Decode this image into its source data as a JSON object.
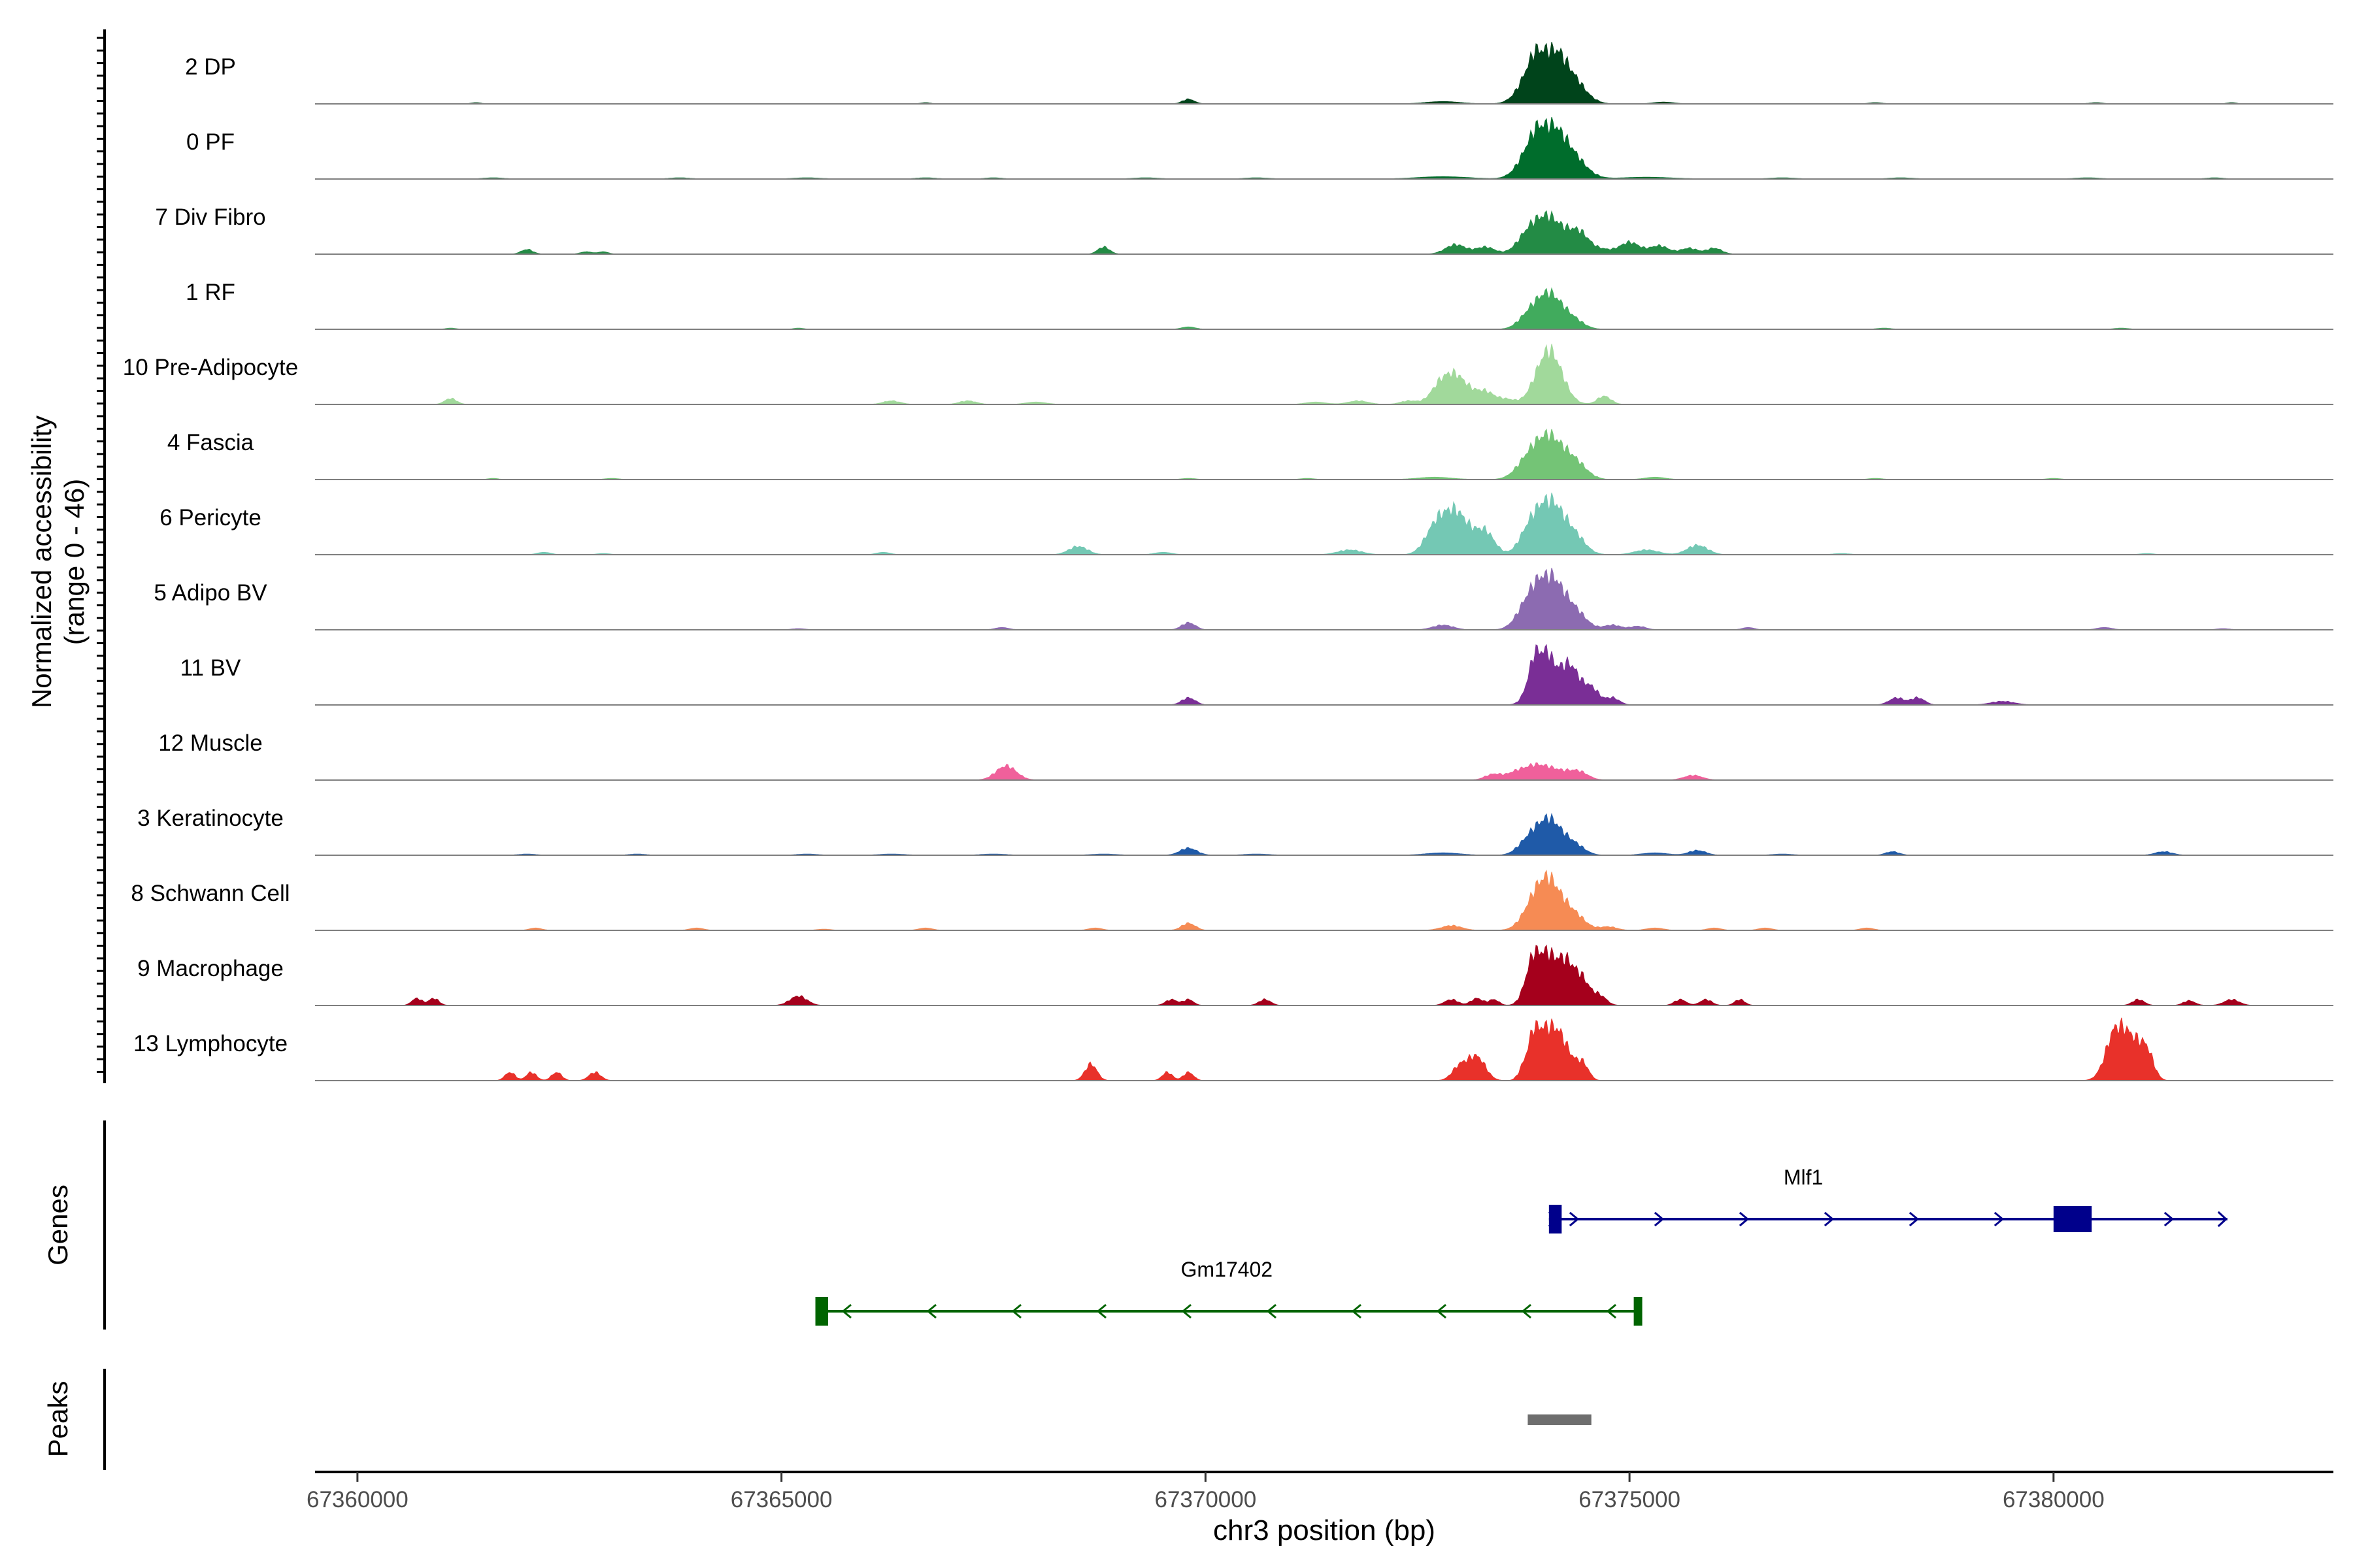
{
  "chart_data": {
    "type": "area",
    "xlabel": "chr3 position (bp)",
    "ylabel_line1": "Normalized accessibility",
    "ylabel_line2": "(range 0 - 46)",
    "xlim": [
      67359500,
      67383300
    ],
    "ylim": [
      0,
      46
    ],
    "x_ticks": [
      {
        "value": 67360000,
        "label": "67360000"
      },
      {
        "value": 67365000,
        "label": "67365000"
      },
      {
        "value": 67370000,
        "label": "67370000"
      },
      {
        "value": 67375000,
        "label": "67375000"
      },
      {
        "value": 67380000,
        "label": "67380000"
      }
    ],
    "tracks": [
      {
        "label": "2 DP",
        "color": "#00441b",
        "peaks": [
          [
            67374050,
            46,
            180
          ],
          [
            67373850,
            16,
            150
          ],
          [
            67374350,
            14,
            150
          ],
          [
            67369800,
            4,
            70
          ],
          [
            67372800,
            2,
            200
          ],
          [
            67375400,
            1.5,
            120
          ],
          [
            67361400,
            1,
            60
          ],
          [
            67366700,
            1,
            60
          ],
          [
            67377900,
            1,
            80
          ],
          [
            67380500,
            1,
            80
          ],
          [
            67382100,
            1,
            60
          ]
        ]
      },
      {
        "label": "0 PF",
        "color": "#006d2c",
        "peaks": [
          [
            67374050,
            42,
            190
          ],
          [
            67373850,
            14,
            150
          ],
          [
            67374350,
            12,
            160
          ],
          [
            67372800,
            2,
            300
          ],
          [
            67375200,
            1.5,
            300
          ],
          [
            67361600,
            1,
            120
          ],
          [
            67363800,
            1,
            120
          ],
          [
            67365300,
            1,
            160
          ],
          [
            67366700,
            1,
            120
          ],
          [
            67367500,
            1,
            100
          ],
          [
            67369300,
            1,
            150
          ],
          [
            67370600,
            1,
            140
          ],
          [
            67376800,
            1,
            150
          ],
          [
            67378200,
            1,
            140
          ],
          [
            67380400,
            1,
            150
          ],
          [
            67381900,
            1,
            100
          ]
        ]
      },
      {
        "label": "7 Div Fibro",
        "color": "#238b45",
        "peaks": [
          [
            67374050,
            30,
            160
          ],
          [
            67374400,
            18,
            130
          ],
          [
            67373800,
            14,
            130
          ],
          [
            67372950,
            8,
            120
          ],
          [
            67373300,
            6,
            110
          ],
          [
            67375000,
            10,
            120
          ],
          [
            67375350,
            7,
            110
          ],
          [
            67375700,
            5,
            100
          ],
          [
            67376000,
            5,
            90
          ],
          [
            67368800,
            6,
            70
          ],
          [
            67362000,
            4,
            70
          ],
          [
            67362700,
            2,
            70
          ],
          [
            67362900,
            2,
            60
          ],
          [
            67374700,
            3,
            100
          ]
        ]
      },
      {
        "label": "1 RF",
        "color": "#41ab5d",
        "peaks": [
          [
            67374050,
            30,
            160
          ],
          [
            67373800,
            8,
            120
          ],
          [
            67374350,
            6,
            120
          ],
          [
            67369800,
            2,
            80
          ],
          [
            67361100,
            1,
            60
          ],
          [
            67365200,
            1,
            60
          ],
          [
            67378000,
            1,
            80
          ],
          [
            67380800,
            1,
            80
          ]
        ]
      },
      {
        "label": "10 Pre-Adipocyte",
        "color": "#a1d99b",
        "peaks": [
          [
            67374050,
            46,
            150
          ],
          [
            67372950,
            24,
            150
          ],
          [
            67372750,
            10,
            110
          ],
          [
            67373300,
            10,
            110
          ],
          [
            67373550,
            4,
            100
          ],
          [
            67374700,
            7,
            80
          ],
          [
            67371800,
            3,
            120
          ],
          [
            67371300,
            2,
            120
          ],
          [
            67372400,
            3,
            100
          ],
          [
            67368000,
            2,
            120
          ],
          [
            67367200,
            3,
            100
          ],
          [
            67366300,
            3,
            100
          ],
          [
            67361100,
            5,
            70
          ]
        ]
      },
      {
        "label": "4 Fascia",
        "color": "#74c476",
        "peaks": [
          [
            67374050,
            34,
            160
          ],
          [
            67373800,
            14,
            140
          ],
          [
            67374350,
            14,
            140
          ],
          [
            67372700,
            2,
            200
          ],
          [
            67375300,
            2,
            120
          ],
          [
            67361600,
            1,
            60
          ],
          [
            67363000,
            1,
            80
          ],
          [
            67369800,
            1,
            80
          ],
          [
            67371200,
            1,
            80
          ],
          [
            67377900,
            1,
            80
          ],
          [
            67380000,
            1,
            80
          ]
        ]
      },
      {
        "label": "6 Pericyte",
        "color": "#74c8b4",
        "peaks": [
          [
            67374050,
            46,
            160
          ],
          [
            67372950,
            36,
            160
          ],
          [
            67372700,
            18,
            120
          ],
          [
            67373300,
            18,
            110
          ],
          [
            67373800,
            14,
            110
          ],
          [
            67374350,
            14,
            130
          ],
          [
            67375800,
            8,
            120
          ],
          [
            67371700,
            4,
            140
          ],
          [
            67375200,
            4,
            140
          ],
          [
            67368500,
            7,
            110
          ],
          [
            67366200,
            2,
            80
          ],
          [
            67369500,
            2,
            100
          ],
          [
            67362200,
            2,
            80
          ],
          [
            67362900,
            1,
            80
          ],
          [
            67377500,
            1,
            100
          ],
          [
            67381100,
            1,
            80
          ]
        ]
      },
      {
        "label": "5 Adipo BV",
        "color": "#8c6bb1",
        "peaks": [
          [
            67374050,
            44,
            160
          ],
          [
            67373800,
            18,
            130
          ],
          [
            67374350,
            14,
            140
          ],
          [
            67369800,
            6,
            80
          ],
          [
            67372800,
            4,
            120
          ],
          [
            67374800,
            4,
            100
          ],
          [
            67375100,
            3,
            90
          ],
          [
            67376400,
            2,
            70
          ],
          [
            67367600,
            2,
            80
          ],
          [
            67365200,
            1,
            80
          ],
          [
            67380600,
            2,
            90
          ],
          [
            67382000,
            1,
            80
          ]
        ]
      },
      {
        "label": "11 BV",
        "color": "#7a2e96",
        "peaks": [
          [
            67374000,
            40,
            130
          ],
          [
            67374300,
            32,
            110
          ],
          [
            67373900,
            20,
            90
          ],
          [
            67374550,
            14,
            90
          ],
          [
            67374800,
            6,
            80
          ],
          [
            67369800,
            6,
            80
          ],
          [
            67378150,
            6,
            90
          ],
          [
            67378400,
            6,
            80
          ],
          [
            67379400,
            3,
            140
          ]
        ]
      },
      {
        "label": "12 Muscle",
        "color": "#f0609b",
        "peaks": [
          [
            67367650,
            12,
            120
          ],
          [
            67374050,
            10,
            200
          ],
          [
            67373650,
            5,
            100
          ],
          [
            67373850,
            6,
            120
          ],
          [
            67374400,
            6,
            110
          ],
          [
            67373400,
            5,
            100
          ],
          [
            67375750,
            4,
            110
          ]
        ]
      },
      {
        "label": "3 Keratinocyte",
        "color": "#1f5aa8",
        "peaks": [
          [
            67374050,
            30,
            150
          ],
          [
            67373800,
            10,
            120
          ],
          [
            67374350,
            8,
            120
          ],
          [
            67369800,
            6,
            100
          ],
          [
            67375800,
            4,
            100
          ],
          [
            67372800,
            2,
            200
          ],
          [
            67375300,
            2,
            150
          ],
          [
            67366300,
            1,
            150
          ],
          [
            67367500,
            1,
            150
          ],
          [
            67368800,
            1,
            150
          ],
          [
            67370600,
            1,
            150
          ],
          [
            67362000,
            1,
            100
          ],
          [
            67363300,
            1,
            100
          ],
          [
            67378100,
            3,
            80
          ],
          [
            67381300,
            3,
            100
          ],
          [
            67365300,
            1,
            120
          ],
          [
            67376800,
            1,
            120
          ]
        ]
      },
      {
        "label": "8 Schwann Cell",
        "color": "#f68b54",
        "peaks": [
          [
            67374050,
            40,
            150
          ],
          [
            67373850,
            14,
            130
          ],
          [
            67374350,
            12,
            130
          ],
          [
            67369800,
            6,
            80
          ],
          [
            67372900,
            4,
            120
          ],
          [
            67374750,
            3,
            100
          ],
          [
            67362100,
            2,
            70
          ],
          [
            67364000,
            2,
            80
          ],
          [
            67365500,
            1,
            80
          ],
          [
            67366700,
            2,
            80
          ],
          [
            67368700,
            2,
            80
          ],
          [
            67376000,
            2,
            80
          ],
          [
            67376600,
            2,
            80
          ],
          [
            67377800,
            2,
            80
          ],
          [
            67375300,
            2,
            100
          ]
        ]
      },
      {
        "label": "9 Macrophage",
        "color": "#a5001c",
        "peaks": [
          [
            67374000,
            40,
            120
          ],
          [
            67374250,
            34,
            110
          ],
          [
            67373850,
            24,
            90
          ],
          [
            67374450,
            18,
            90
          ],
          [
            67374650,
            8,
            80
          ],
          [
            67365200,
            8,
            100
          ],
          [
            67360700,
            6,
            60
          ],
          [
            67360900,
            6,
            60
          ],
          [
            67369600,
            5,
            70
          ],
          [
            67369800,
            5,
            60
          ],
          [
            67370700,
            5,
            70
          ],
          [
            67372900,
            5,
            80
          ],
          [
            67373200,
            6,
            70
          ],
          [
            67373400,
            5,
            60
          ],
          [
            67375600,
            5,
            70
          ],
          [
            67375900,
            5,
            70
          ],
          [
            67376300,
            5,
            60
          ],
          [
            67381000,
            5,
            70
          ],
          [
            67381600,
            4,
            70
          ],
          [
            67382100,
            5,
            90
          ]
        ]
      },
      {
        "label": "13 Lymphocyte",
        "color": "#e8312a",
        "peaks": [
          [
            67373950,
            42,
            100
          ],
          [
            67374150,
            36,
            90
          ],
          [
            67373900,
            18,
            80
          ],
          [
            67374300,
            14,
            80
          ],
          [
            67374450,
            14,
            70
          ],
          [
            67380750,
            46,
            120
          ],
          [
            67380950,
            22,
            90
          ],
          [
            67381100,
            24,
            80
          ],
          [
            67373200,
            20,
            100
          ],
          [
            67373000,
            12,
            90
          ],
          [
            67361800,
            7,
            60
          ],
          [
            67362050,
            7,
            60
          ],
          [
            67362350,
            7,
            60
          ],
          [
            67362800,
            7,
            70
          ],
          [
            67368650,
            14,
            70
          ],
          [
            67369550,
            7,
            60
          ],
          [
            67369800,
            7,
            60
          ],
          [
            67373750,
            8,
            60
          ]
        ]
      }
    ],
    "genes": [
      {
        "name": "Mlf1",
        "strand": "+",
        "color": "#00008b",
        "start": 67374050,
        "end": 67382050,
        "exons": [
          [
            67374050,
            67374200
          ],
          [
            67380000,
            67380450
          ]
        ]
      },
      {
        "name": "Gm17402",
        "strand": "-",
        "color": "#006400",
        "start": 67365450,
        "end": 67375100,
        "exons": [
          [
            67365400,
            67365550
          ],
          [
            67375050,
            67375150
          ]
        ]
      }
    ],
    "peak_regions": [
      [
        67373800,
        67374550
      ]
    ],
    "panel_labels": {
      "genes": "Genes",
      "peaks": "Peaks"
    }
  }
}
